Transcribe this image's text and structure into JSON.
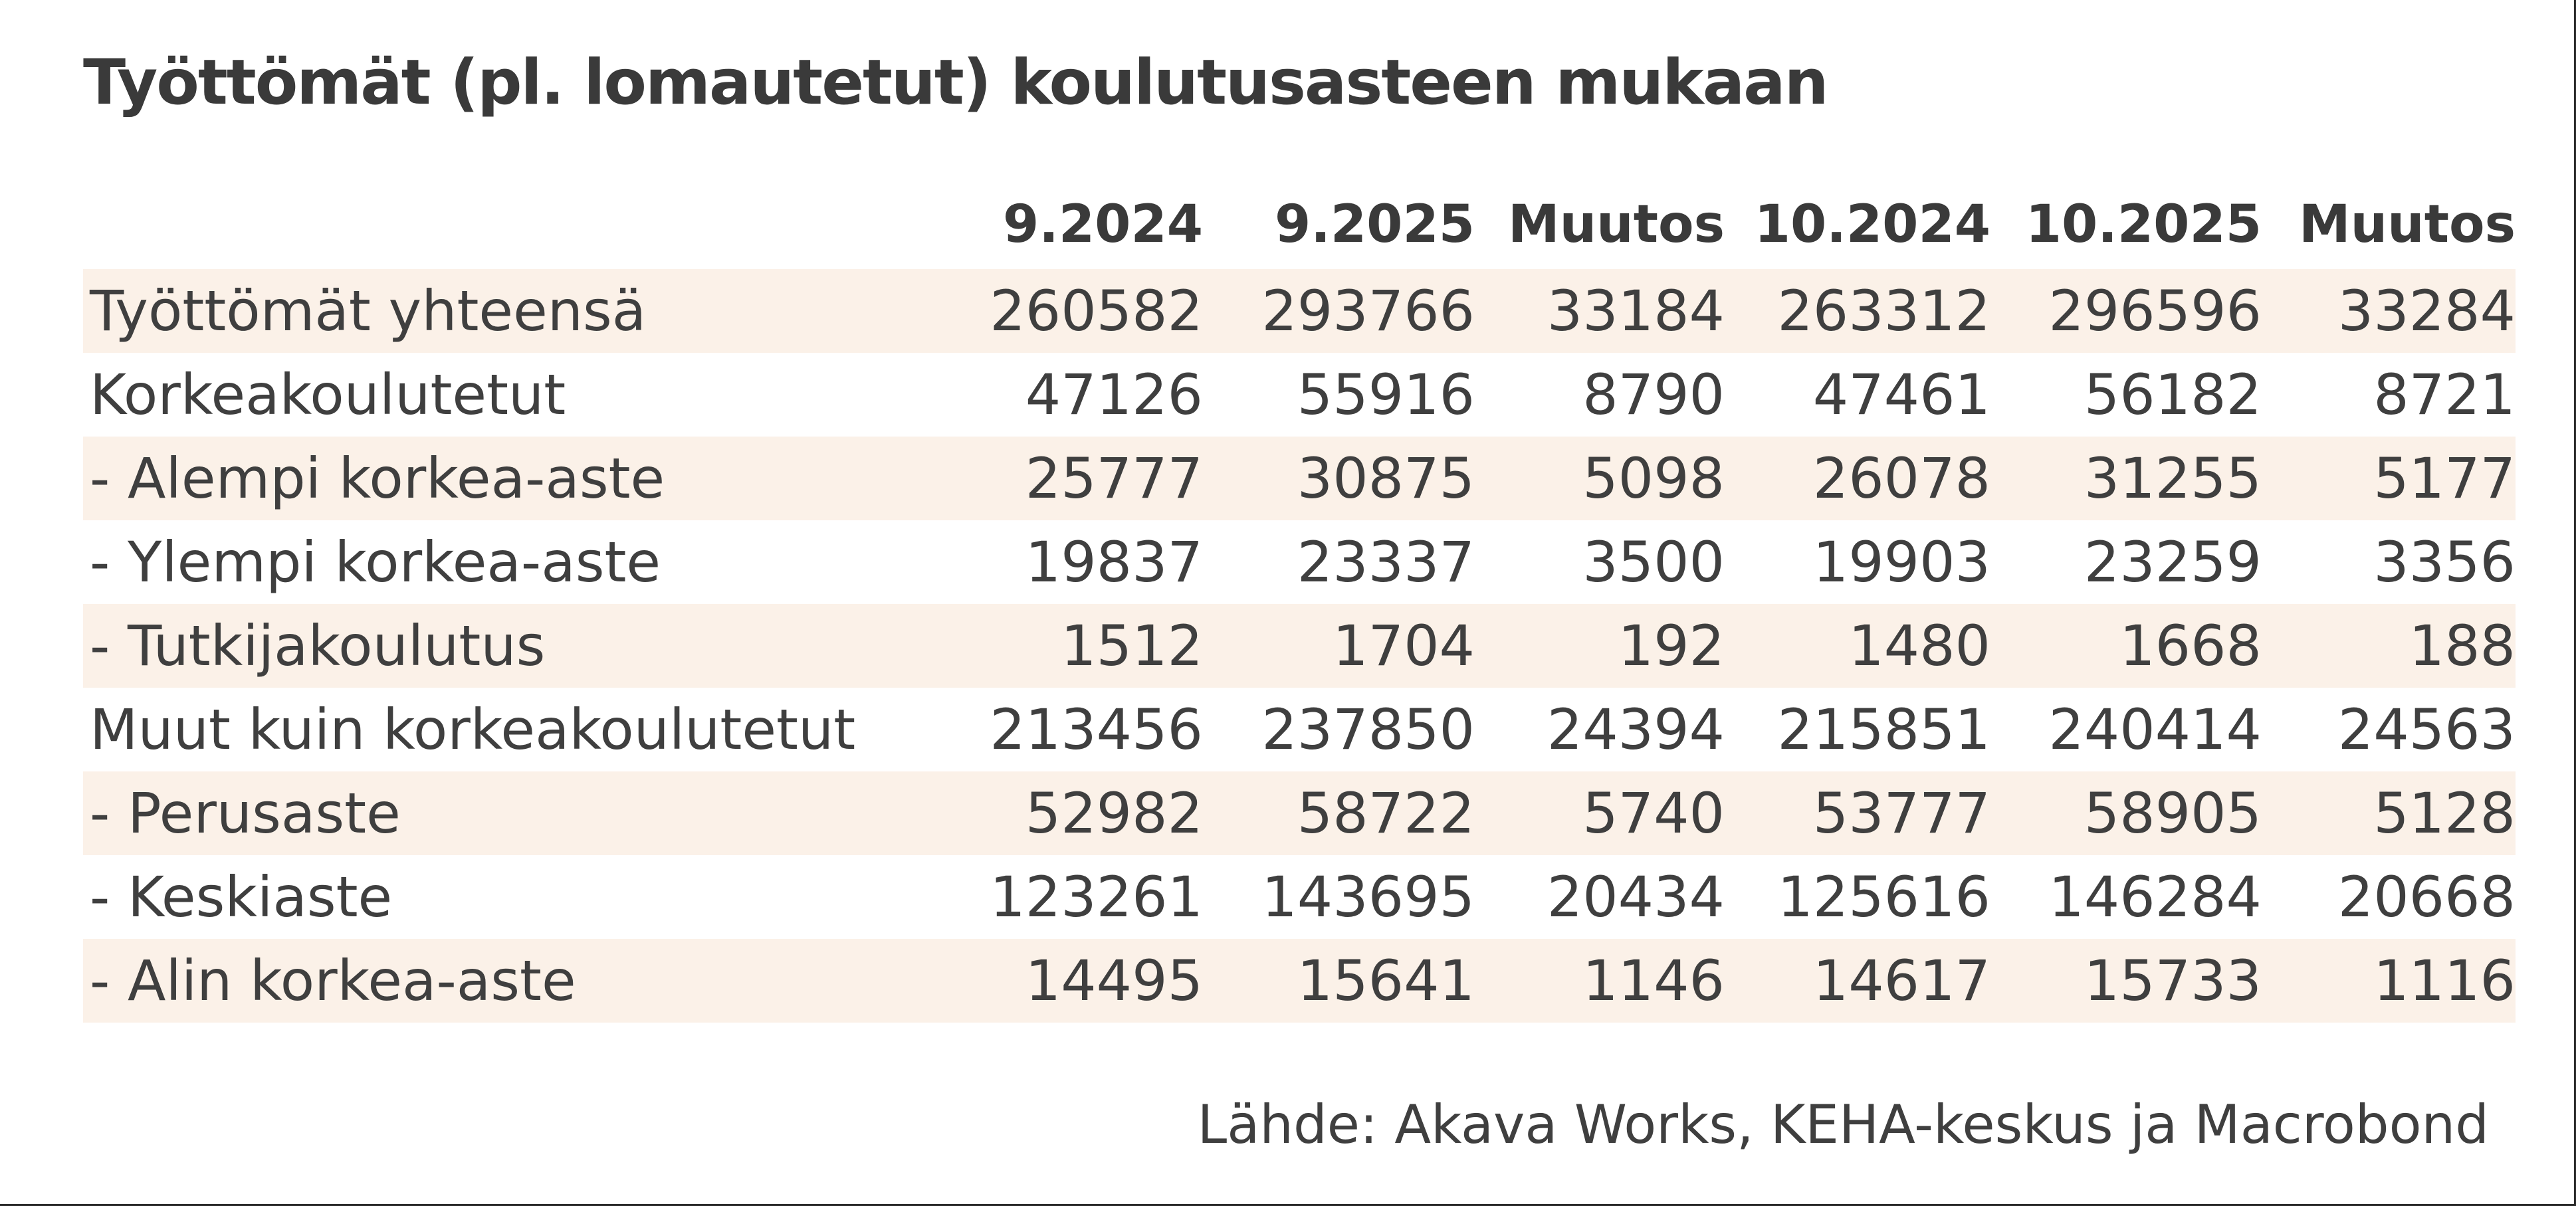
{
  "title": "Työttömät (pl. lomautetut) koulutusasteen mukaan",
  "source": "Lähde: Akava Works, KEHA-keskus ja Macrobond",
  "colors": {
    "background": "#ffffff",
    "stripe": "#fbf1e8",
    "text": "#3f3f3f",
    "title_text": "#3a3a3a",
    "edge_border": "#2c2c2c"
  },
  "chart_data": {
    "type": "table",
    "title": "Työttömät (pl. lomautetut) koulutusasteen mukaan",
    "columns": [
      "",
      "9.2024",
      "9.2025",
      "Muutos",
      "10.2024",
      "10.2025",
      "Muutos"
    ],
    "rows": [
      {
        "label": "Työttömät yhteensä",
        "values": [
          "260582",
          "293766",
          "33184",
          "263312",
          "296596",
          "33284"
        ]
      },
      {
        "label": "Korkeakoulutetut",
        "values": [
          "47126",
          "55916",
          "8790",
          "47461",
          "56182",
          "8721"
        ]
      },
      {
        "label": "- Alempi korkea-aste",
        "values": [
          "25777",
          "30875",
          "5098",
          "26078",
          "31255",
          "5177"
        ]
      },
      {
        "label": "- Ylempi korkea-aste",
        "values": [
          "19837",
          "23337",
          "3500",
          "19903",
          "23259",
          "3356"
        ]
      },
      {
        "label": "- Tutkijakoulutus",
        "values": [
          "1512",
          "1704",
          "192",
          "1480",
          "1668",
          "188"
        ]
      },
      {
        "label": "Muut kuin korkeakoulutetut",
        "values": [
          "213456",
          "237850",
          "24394",
          "215851",
          "240414",
          "24563"
        ]
      },
      {
        "label": "- Perusaste",
        "values": [
          "52982",
          "58722",
          "5740",
          "53777",
          "58905",
          "5128"
        ]
      },
      {
        "label": "- Keskiaste",
        "values": [
          "123261",
          "143695",
          "20434",
          "125616",
          "146284",
          "20668"
        ]
      },
      {
        "label": "- Alin korkea-aste",
        "values": [
          "14495",
          "15641",
          "1146",
          "14617",
          "15733",
          "1116"
        ]
      }
    ],
    "source": "Lähde: Akava Works, KEHA-keskus ja Macrobond",
    "layout": {
      "striped_rows": "odd",
      "value_alignment": "right",
      "legend": "none",
      "grid": "off"
    }
  }
}
